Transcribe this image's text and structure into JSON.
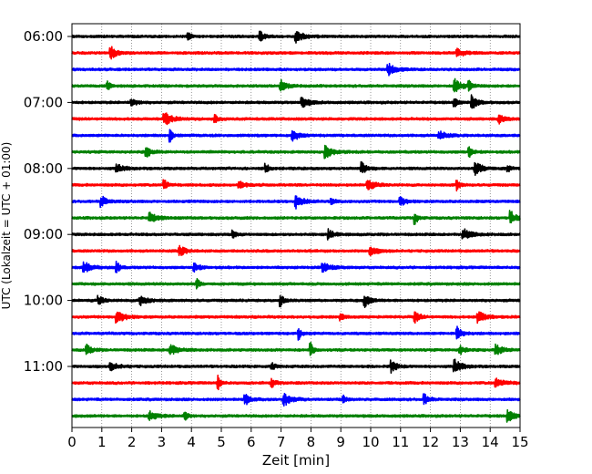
{
  "chart_data": {
    "type": "line",
    "title": "",
    "xlabel": "Zeit  [min]",
    "ylabel": "UTC (Lokalzeit = UTC + 01:00)",
    "xlim": [
      0,
      15
    ],
    "x_ticks": [
      "0",
      "1",
      "2",
      "3",
      "4",
      "5",
      "6",
      "7",
      "8",
      "9",
      "10",
      "11",
      "12",
      "13",
      "14",
      "15"
    ],
    "x_grid": "dotted vertical at each minute",
    "y_tick_labels": [
      "06:00",
      "07:00",
      "08:00",
      "09:00",
      "10:00",
      "11:00"
    ],
    "y_tick_every_n_traces": 4,
    "trace_colors": [
      "#000000",
      "#ff0000",
      "#0000ff",
      "#008000"
    ],
    "traces": [
      {
        "start": "06:00",
        "events_min": [
          3.9,
          6.3,
          7.5
        ]
      },
      {
        "start": "06:15",
        "events_min": [
          1.3,
          12.9
        ]
      },
      {
        "start": "06:30",
        "events_min": [
          10.6
        ]
      },
      {
        "start": "06:45",
        "events_min": [
          1.2,
          7.0,
          12.8,
          13.3
        ]
      },
      {
        "start": "07:00",
        "events_min": [
          2.0,
          7.7,
          12.8,
          13.4
        ]
      },
      {
        "start": "07:15",
        "events_min": [
          3.1,
          4.8,
          14.3
        ]
      },
      {
        "start": "07:30",
        "events_min": [
          3.3,
          7.4,
          12.3
        ]
      },
      {
        "start": "07:45",
        "events_min": [
          2.5,
          8.5,
          13.3
        ]
      },
      {
        "start": "08:00",
        "events_min": [
          1.5,
          6.5,
          9.7,
          13.5,
          14.6
        ]
      },
      {
        "start": "08:15",
        "events_min": [
          3.1,
          5.6,
          9.9,
          12.9
        ]
      },
      {
        "start": "08:30",
        "events_min": [
          1.0,
          7.5,
          8.7,
          11.0
        ]
      },
      {
        "start": "08:45",
        "events_min": [
          2.6,
          11.5,
          14.7
        ]
      },
      {
        "start": "09:00",
        "events_min": [
          5.4,
          8.6,
          13.1
        ]
      },
      {
        "start": "09:15",
        "events_min": [
          3.6,
          10.0
        ]
      },
      {
        "start": "09:30",
        "events_min": [
          0.4,
          1.5,
          4.1,
          8.4
        ]
      },
      {
        "start": "09:45",
        "events_min": [
          4.2
        ]
      },
      {
        "start": "10:00",
        "events_min": [
          0.9,
          2.3,
          7.0,
          9.8
        ]
      },
      {
        "start": "10:15",
        "events_min": [
          1.5,
          9.0,
          11.5,
          13.6
        ]
      },
      {
        "start": "10:30",
        "events_min": [
          7.6,
          12.9
        ]
      },
      {
        "start": "10:45",
        "events_min": [
          0.5,
          3.3,
          8.0,
          13.0,
          14.2
        ]
      },
      {
        "start": "11:00",
        "events_min": [
          1.3,
          6.7,
          10.7,
          12.8
        ]
      },
      {
        "start": "11:15",
        "events_min": [
          4.9,
          6.7,
          14.2
        ]
      },
      {
        "start": "11:30",
        "events_min": [
          5.8,
          7.1,
          9.1,
          11.8
        ]
      },
      {
        "start": "11:45",
        "events_min": [
          2.6,
          3.8,
          14.6
        ]
      }
    ]
  }
}
